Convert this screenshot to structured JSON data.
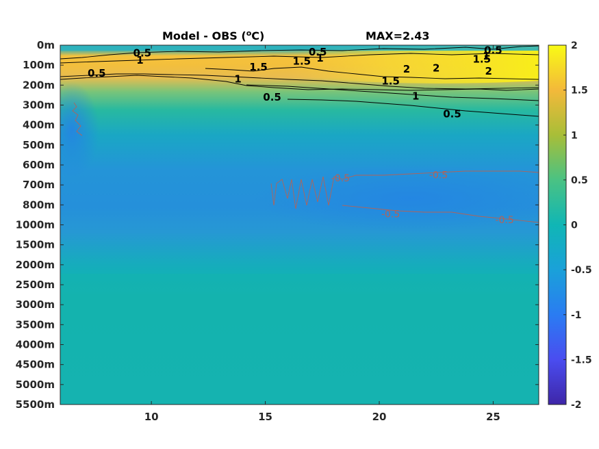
{
  "chart_data": {
    "type": "heatmap",
    "title_left": "Model - OBS (",
    "title_unit_sup": "o",
    "title_unit": "C)",
    "title_right": "MAX=2.43",
    "x_ticks": [
      10,
      15,
      20,
      25
    ],
    "xlim": [
      6,
      27
    ],
    "y_tick_labels": [
      "0m",
      "100m",
      "200m",
      "300m",
      "400m",
      "500m",
      "600m",
      "700m",
      "800m",
      "1000m",
      "1500m",
      "2000m",
      "2500m",
      "3000m",
      "3500m",
      "4000m",
      "4500m",
      "5000m",
      "5500m"
    ],
    "colorbar": {
      "range": [
        -2,
        2
      ],
      "ticks": [
        "2",
        "1.5",
        "1",
        "0.5",
        "0",
        "-0.5",
        "-1",
        "-1.5",
        "-2"
      ]
    },
    "contour_labels": [
      {
        "text": "0.5",
        "x": 9.6,
        "depth": 0.4
      },
      {
        "text": "1",
        "x": 9.5,
        "depth": 0.75
      },
      {
        "text": "0.5",
        "x": 7.6,
        "depth": 1.4
      },
      {
        "text": "0.5",
        "x": 17.3,
        "depth": 0.35
      },
      {
        "text": "1.5",
        "x": 14.7,
        "depth": 1.1
      },
      {
        "text": "1.5",
        "x": 16.6,
        "depth": 0.8
      },
      {
        "text": "1",
        "x": 17.4,
        "depth": 0.65
      },
      {
        "text": "1",
        "x": 13.8,
        "depth": 1.7
      },
      {
        "text": "0.5",
        "x": 15.3,
        "depth": 2.6
      },
      {
        "text": "2",
        "x": 21.2,
        "depth": 1.2
      },
      {
        "text": "2",
        "x": 22.5,
        "depth": 1.15
      },
      {
        "text": "2",
        "x": 24.8,
        "depth": 1.3
      },
      {
        "text": "1.5",
        "x": 20.5,
        "depth": 1.8
      },
      {
        "text": "1.5",
        "x": 24.5,
        "depth": 0.7
      },
      {
        "text": "1",
        "x": 24.7,
        "depth": 0.55
      },
      {
        "text": "0.5",
        "x": 25.0,
        "depth": 0.25
      },
      {
        "text": "1",
        "x": 21.6,
        "depth": 2.55
      },
      {
        "text": "0.5",
        "x": 23.2,
        "depth": 3.45
      },
      {
        "text": "-0.5",
        "x": 18.3,
        "depth": 6.65
      },
      {
        "text": "-0.5",
        "x": 22.6,
        "depth": 6.5
      },
      {
        "text": "-0.5",
        "x": 20.5,
        "depth": 8.45
      },
      {
        "text": "-0.5",
        "x": 25.5,
        "depth": 8.75
      }
    ]
  }
}
